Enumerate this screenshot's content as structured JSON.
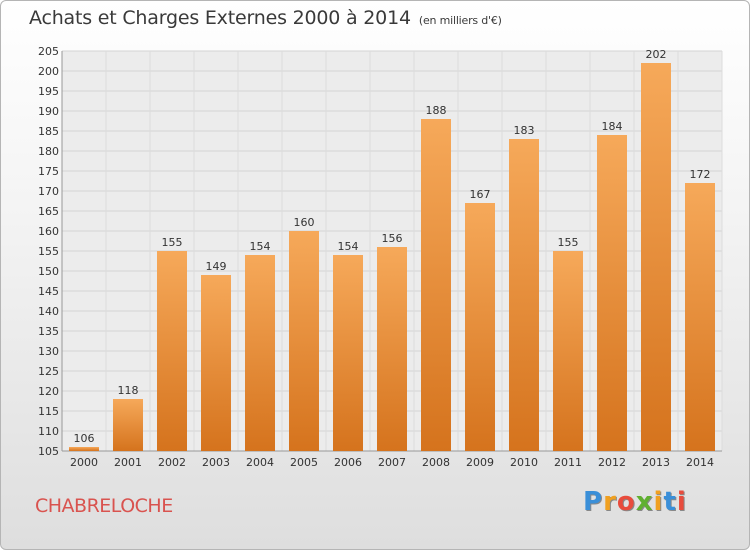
{
  "header": {
    "title": "Achats et Charges Externes 2000 à 2014",
    "subtitle": "(en milliers d'€)"
  },
  "footer": {
    "commune": "CHABRELOCHE",
    "logo": [
      "P",
      "r",
      "o",
      "x",
      "i",
      "t",
      "i"
    ]
  },
  "colors": {
    "bar_light": "#f6a95a",
    "bar_dark": "#d5731d",
    "commune": "#d9534f",
    "logo": [
      "#3a8fd8",
      "#f0a020",
      "#e84c3d",
      "#60b030",
      "#f0a020",
      "#3a8fd8",
      "#e84c3d"
    ]
  },
  "chart_data": {
    "type": "bar",
    "categories": [
      "2000",
      "2001",
      "2002",
      "2003",
      "2004",
      "2005",
      "2006",
      "2007",
      "2008",
      "2009",
      "2010",
      "2011",
      "2012",
      "2013",
      "2014"
    ],
    "values": [
      106,
      118,
      155,
      149,
      154,
      160,
      154,
      156,
      188,
      167,
      183,
      155,
      184,
      202,
      172
    ],
    "ylim": [
      105,
      205
    ],
    "yticks": [
      105,
      110,
      115,
      120,
      125,
      130,
      135,
      140,
      145,
      150,
      155,
      160,
      165,
      170,
      175,
      180,
      185,
      190,
      195,
      200,
      205
    ],
    "grid": true,
    "legend": "none"
  }
}
